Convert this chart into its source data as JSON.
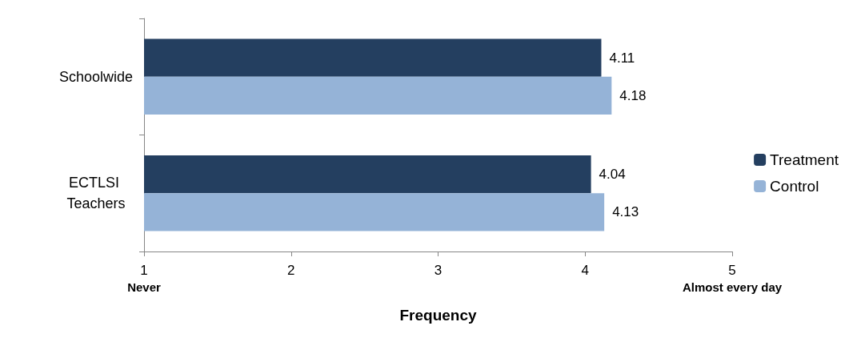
{
  "chart_data": {
    "type": "bar",
    "orientation": "horizontal",
    "xlabel": "Frequency",
    "categories": [
      "Schoolwide",
      "ECTLSI Teachers"
    ],
    "series": [
      {
        "name": "Treatment",
        "color": "#243f60",
        "values": [
          4.11,
          4.04
        ]
      },
      {
        "name": "Control",
        "color": "#95b3d7",
        "values": [
          4.18,
          4.13
        ]
      }
    ],
    "xlim": [
      1,
      5
    ],
    "xticks": [
      {
        "value": 1,
        "label": "1\nNever"
      },
      2,
      3,
      4,
      {
        "value": 5,
        "label": "5\nAlmost every day"
      }
    ],
    "data_labels": true,
    "legend": "right",
    "grid": false
  }
}
